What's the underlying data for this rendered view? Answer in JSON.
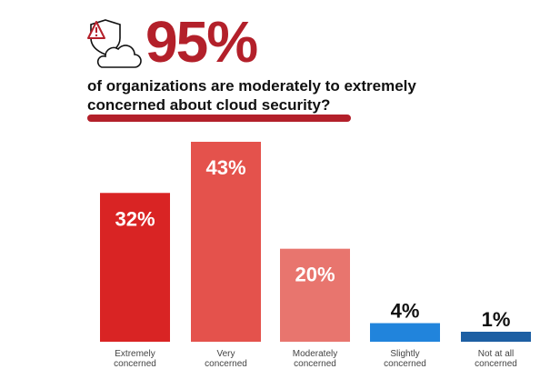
{
  "header": {
    "headline": "95%",
    "subtitle_line1": "of organizations are moderately to extremely",
    "subtitle_line2": "concerned about cloud security?",
    "icon": "shield-warning-cloud-icon",
    "accent_color": "#b3202a"
  },
  "chart_data": {
    "type": "bar",
    "categories": [
      "Extremely concerned",
      "Very concerned",
      "Moderately concerned",
      "Slightly concerned",
      "Not at all concerned"
    ],
    "category_lines": [
      [
        "Extremely",
        "concerned"
      ],
      [
        "Very",
        "concerned"
      ],
      [
        "Moderately",
        "concerned"
      ],
      [
        "Slightly",
        "concerned"
      ],
      [
        "Not at all",
        "concerned"
      ]
    ],
    "values": [
      32,
      43,
      20,
      4,
      1
    ],
    "data_labels": [
      "32%",
      "43%",
      "20%",
      "4%",
      "1%"
    ],
    "colors": [
      "#d92424",
      "#e4524c",
      "#e8756e",
      "#2184dc",
      "#1d5fa3"
    ],
    "ylim": [
      0,
      43
    ],
    "grid": false
  }
}
